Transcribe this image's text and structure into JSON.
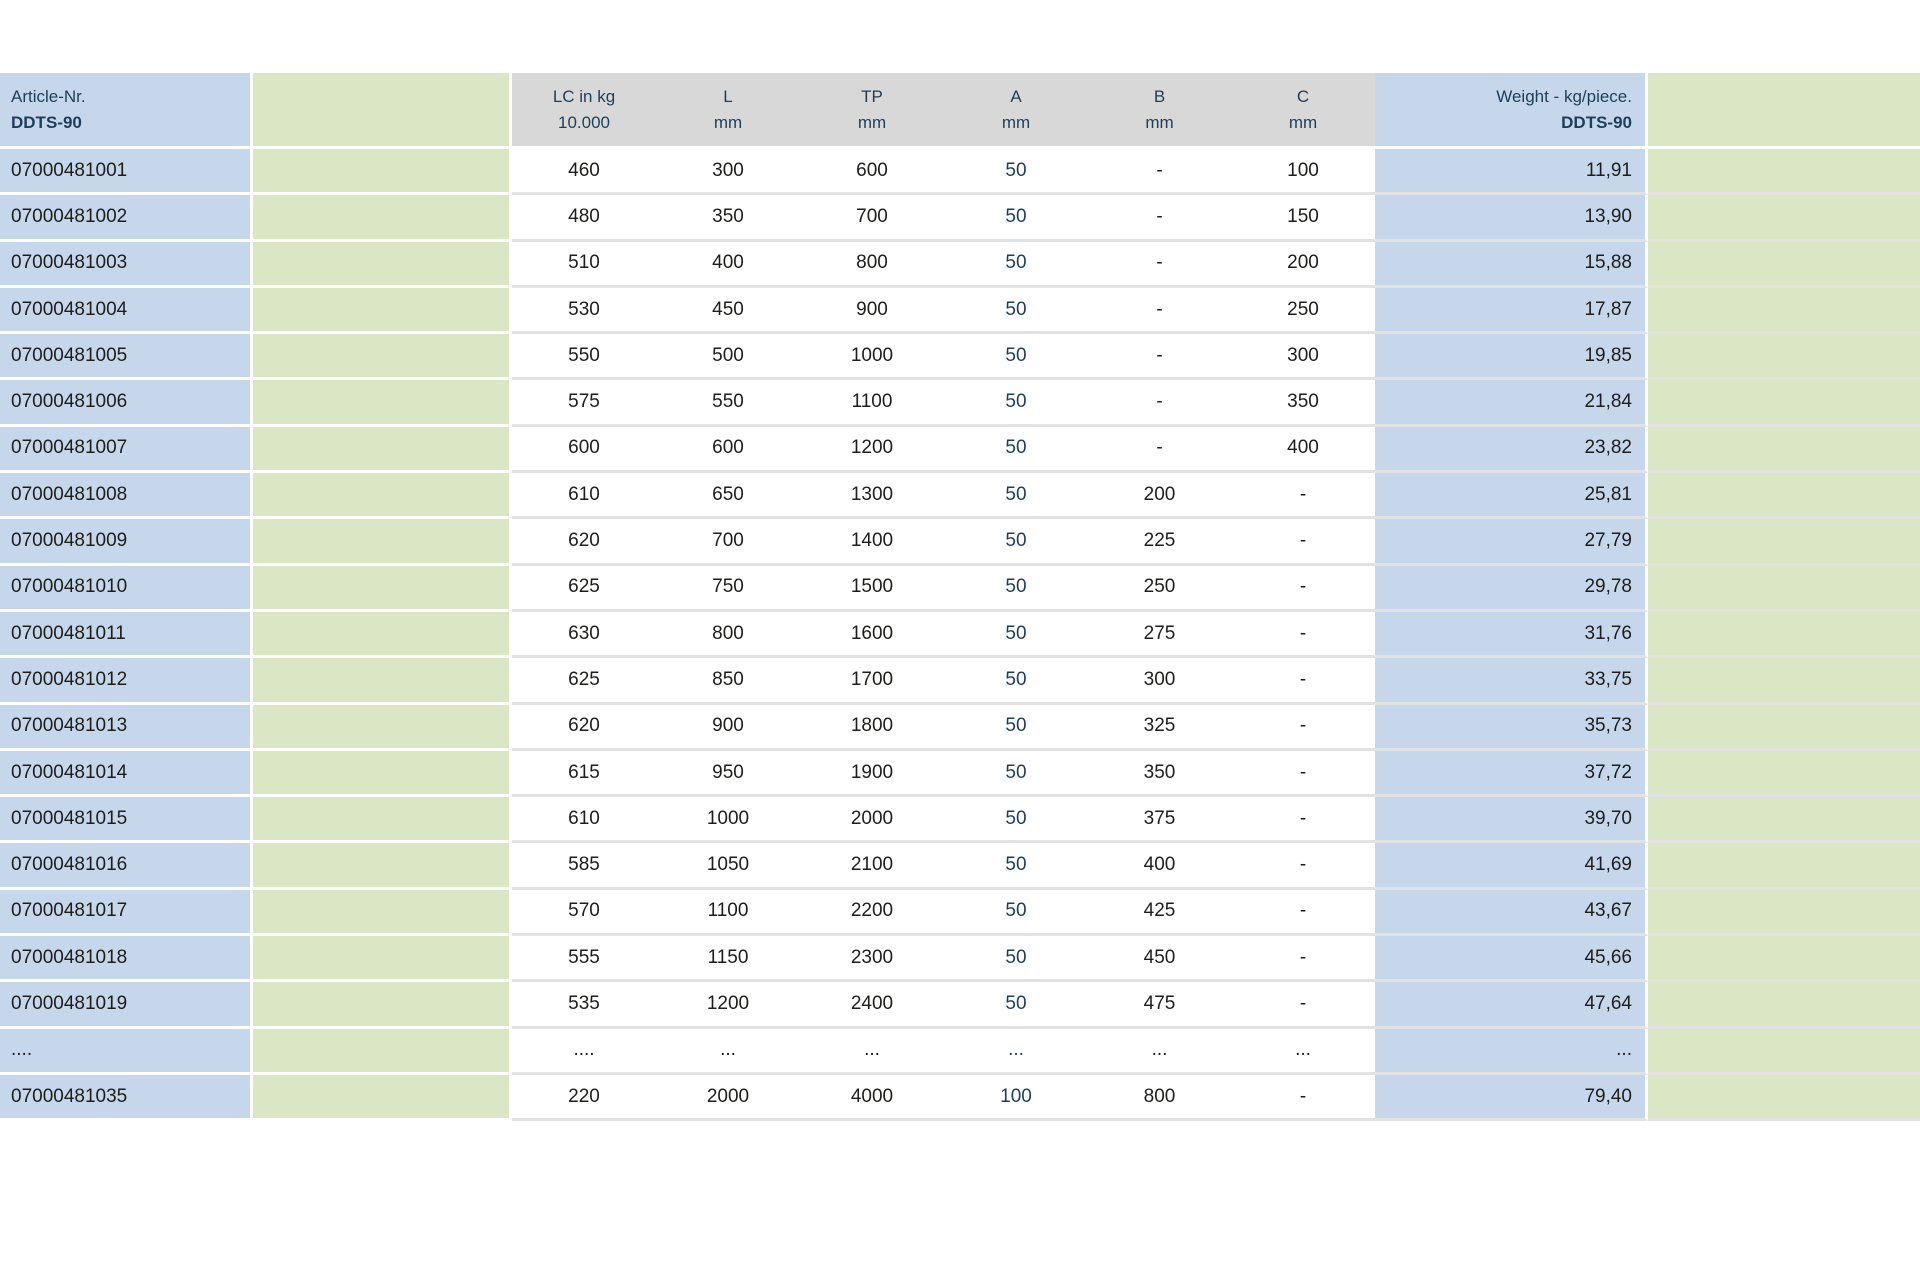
{
  "colors": {
    "blue_column": "#c6d7ec",
    "green_column": "#dbe7c4",
    "gray_header": "#d8d8d8",
    "navy_text": "#1d3e5a",
    "body_text": "#1d1d1b",
    "row_divider": "#e2e2e2"
  },
  "table": {
    "header": {
      "article_line1": "Article-Nr.",
      "article_line2": "DDTS-90",
      "columns": [
        {
          "line1": "LC in kg",
          "line2": "10.000"
        },
        {
          "line1": "L",
          "line2": "mm"
        },
        {
          "line1": "TP",
          "line2": "mm"
        },
        {
          "line1": "A",
          "line2": "mm"
        },
        {
          "line1": "B",
          "line2": "mm"
        },
        {
          "line1": "C",
          "line2": "mm"
        }
      ],
      "weight_line1": "Weight - kg/piece.",
      "weight_line2": "DDTS-90"
    },
    "rows": [
      {
        "article": "07000481001",
        "lc": "460",
        "l": "300",
        "tp": "600",
        "a": "50",
        "b": "-",
        "c": "100",
        "weight": "11,91"
      },
      {
        "article": "07000481002",
        "lc": "480",
        "l": "350",
        "tp": "700",
        "a": "50",
        "b": "-",
        "c": "150",
        "weight": "13,90"
      },
      {
        "article": "07000481003",
        "lc": "510",
        "l": "400",
        "tp": "800",
        "a": "50",
        "b": "-",
        "c": "200",
        "weight": "15,88"
      },
      {
        "article": "07000481004",
        "lc": "530",
        "l": "450",
        "tp": "900",
        "a": "50",
        "b": "-",
        "c": "250",
        "weight": "17,87"
      },
      {
        "article": "07000481005",
        "lc": "550",
        "l": "500",
        "tp": "1000",
        "a": "50",
        "b": "-",
        "c": "300",
        "weight": "19,85"
      },
      {
        "article": "07000481006",
        "lc": "575",
        "l": "550",
        "tp": "1100",
        "a": "50",
        "b": "-",
        "c": "350",
        "weight": "21,84"
      },
      {
        "article": "07000481007",
        "lc": "600",
        "l": "600",
        "tp": "1200",
        "a": "50",
        "b": "-",
        "c": "400",
        "weight": "23,82"
      },
      {
        "article": "07000481008",
        "lc": "610",
        "l": "650",
        "tp": "1300",
        "a": "50",
        "b": "200",
        "c": "-",
        "weight": "25,81"
      },
      {
        "article": "07000481009",
        "lc": "620",
        "l": "700",
        "tp": "1400",
        "a": "50",
        "b": "225",
        "c": "-",
        "weight": "27,79"
      },
      {
        "article": "07000481010",
        "lc": "625",
        "l": "750",
        "tp": "1500",
        "a": "50",
        "b": "250",
        "c": "-",
        "weight": "29,78"
      },
      {
        "article": "07000481011",
        "lc": "630",
        "l": "800",
        "tp": "1600",
        "a": "50",
        "b": "275",
        "c": "-",
        "weight": "31,76"
      },
      {
        "article": "07000481012",
        "lc": "625",
        "l": "850",
        "tp": "1700",
        "a": "50",
        "b": "300",
        "c": "-",
        "weight": "33,75"
      },
      {
        "article": "07000481013",
        "lc": "620",
        "l": "900",
        "tp": "1800",
        "a": "50",
        "b": "325",
        "c": "-",
        "weight": "35,73"
      },
      {
        "article": "07000481014",
        "lc": "615",
        "l": "950",
        "tp": "1900",
        "a": "50",
        "b": "350",
        "c": "-",
        "weight": "37,72"
      },
      {
        "article": "07000481015",
        "lc": "610",
        "l": "1000",
        "tp": "2000",
        "a": "50",
        "b": "375",
        "c": "-",
        "weight": "39,70"
      },
      {
        "article": "07000481016",
        "lc": "585",
        "l": "1050",
        "tp": "2100",
        "a": "50",
        "b": "400",
        "c": "-",
        "weight": "41,69"
      },
      {
        "article": "07000481017",
        "lc": "570",
        "l": "1100",
        "tp": "2200",
        "a": "50",
        "b": "425",
        "c": "-",
        "weight": "43,67"
      },
      {
        "article": "07000481018",
        "lc": "555",
        "l": "1150",
        "tp": "2300",
        "a": "50",
        "b": "450",
        "c": "-",
        "weight": "45,66"
      },
      {
        "article": "07000481019",
        "lc": "535",
        "l": "1200",
        "tp": "2400",
        "a": "50",
        "b": "475",
        "c": "-",
        "weight": "47,64"
      },
      {
        "article": "....",
        "lc": "....",
        "l": "...",
        "tp": "...",
        "a": "...",
        "b": "...",
        "c": "...",
        "weight": "..."
      },
      {
        "article": "07000481035",
        "lc": "220",
        "l": "2000",
        "tp": "4000",
        "a": "100",
        "b": "800",
        "c": "-",
        "weight": "79,40"
      }
    ]
  }
}
